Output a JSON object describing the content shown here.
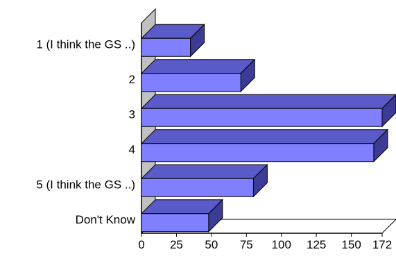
{
  "chart_data": {
    "type": "bar",
    "orientation": "horizontal",
    "style": "3d",
    "categories": [
      "1 (I think the GS ..)",
      "2",
      "3",
      "4",
      "5 (I think the GS ..)",
      "Don't Know"
    ],
    "values": [
      35,
      71,
      172,
      166,
      80,
      48
    ],
    "xlim": [
      0,
      172
    ],
    "x_ticks": [
      0,
      25,
      50,
      75,
      100,
      125,
      150,
      172
    ],
    "x_tick_labels": [
      "0",
      "25",
      "50",
      "75",
      "100",
      "125",
      "150",
      "172"
    ],
    "title": "",
    "xlabel": "",
    "ylabel": "",
    "grid": false,
    "legend": "none",
    "colors": {
      "bar_front": "#8080ff",
      "bar_top": "#5a5ac8",
      "bar_side": "#3c3c96",
      "bar_stroke": "#000000",
      "wall_fill": "#c0c0c0"
    }
  }
}
